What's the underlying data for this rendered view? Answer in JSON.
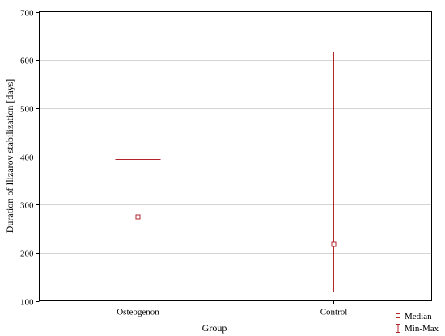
{
  "chart_data": {
    "type": "box",
    "categories": [
      "Osteogenon",
      "Control"
    ],
    "series": [
      {
        "name": "Median",
        "values": [
          275,
          218
        ]
      },
      {
        "name": "Min-Max",
        "values": [
          [
            163,
            394
          ],
          [
            120,
            617
          ]
        ]
      }
    ],
    "xlabel": "Group",
    "ylabel": "Duration of Ilizarov stabilization [days]",
    "ylim": [
      100,
      700
    ],
    "yticks": [
      100,
      200,
      300,
      400,
      500,
      600,
      700
    ],
    "grid": true,
    "legend": "bottom-right",
    "colors": {
      "series": "#b0262b",
      "grid": "#d4d4d4",
      "axis": "#000000"
    }
  }
}
